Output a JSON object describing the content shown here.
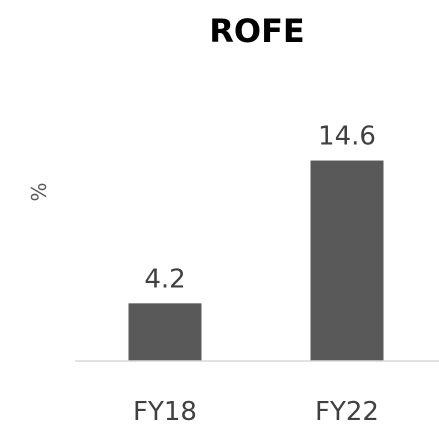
{
  "chart_data": {
    "type": "bar",
    "title": "ROFE",
    "ylabel": "%",
    "xlabel": "",
    "categories": [
      "FY18",
      "FY22"
    ],
    "values": [
      4.2,
      14.6
    ],
    "data_labels": [
      "4.2",
      "14.6"
    ],
    "ylim": [
      0,
      16
    ],
    "grid": false,
    "legend": "none",
    "colors": {
      "bar": "#595959",
      "axis": "#d9d9d9",
      "text": "#404040",
      "title": "#000000"
    }
  }
}
